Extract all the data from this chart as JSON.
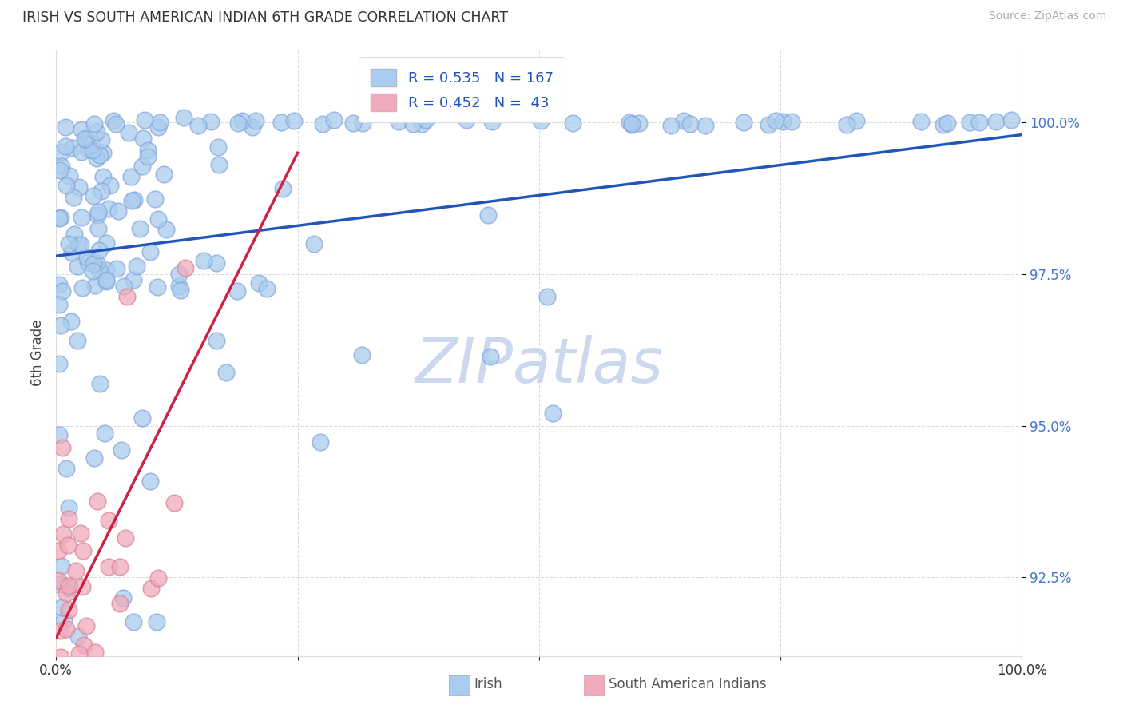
{
  "title": "IRISH VS SOUTH AMERICAN INDIAN 6TH GRADE CORRELATION CHART",
  "source": "Source: ZipAtlas.com",
  "ylabel": "6th Grade",
  "y_ticks": [
    92.5,
    95.0,
    97.5,
    100.0
  ],
  "x_range": [
    0.0,
    100.0
  ],
  "y_range": [
    91.2,
    101.2
  ],
  "irish_R": 0.535,
  "irish_N": 167,
  "sam_R": 0.452,
  "sam_N": 43,
  "irish_color": "#aaccee",
  "irish_edge_color": "#88aadd",
  "sam_color": "#f0aabc",
  "sam_edge_color": "#dd8899",
  "irish_line_color": "#2255bb",
  "sam_line_color": "#cc2244",
  "legend_text_color": "#2255bb",
  "watermark_color": "#ccd8ee",
  "background_color": "#ffffff",
  "grid_color": "#cccccc",
  "ytick_color": "#4477cc",
  "title_color": "#333333",
  "source_color": "#aaaaaa"
}
